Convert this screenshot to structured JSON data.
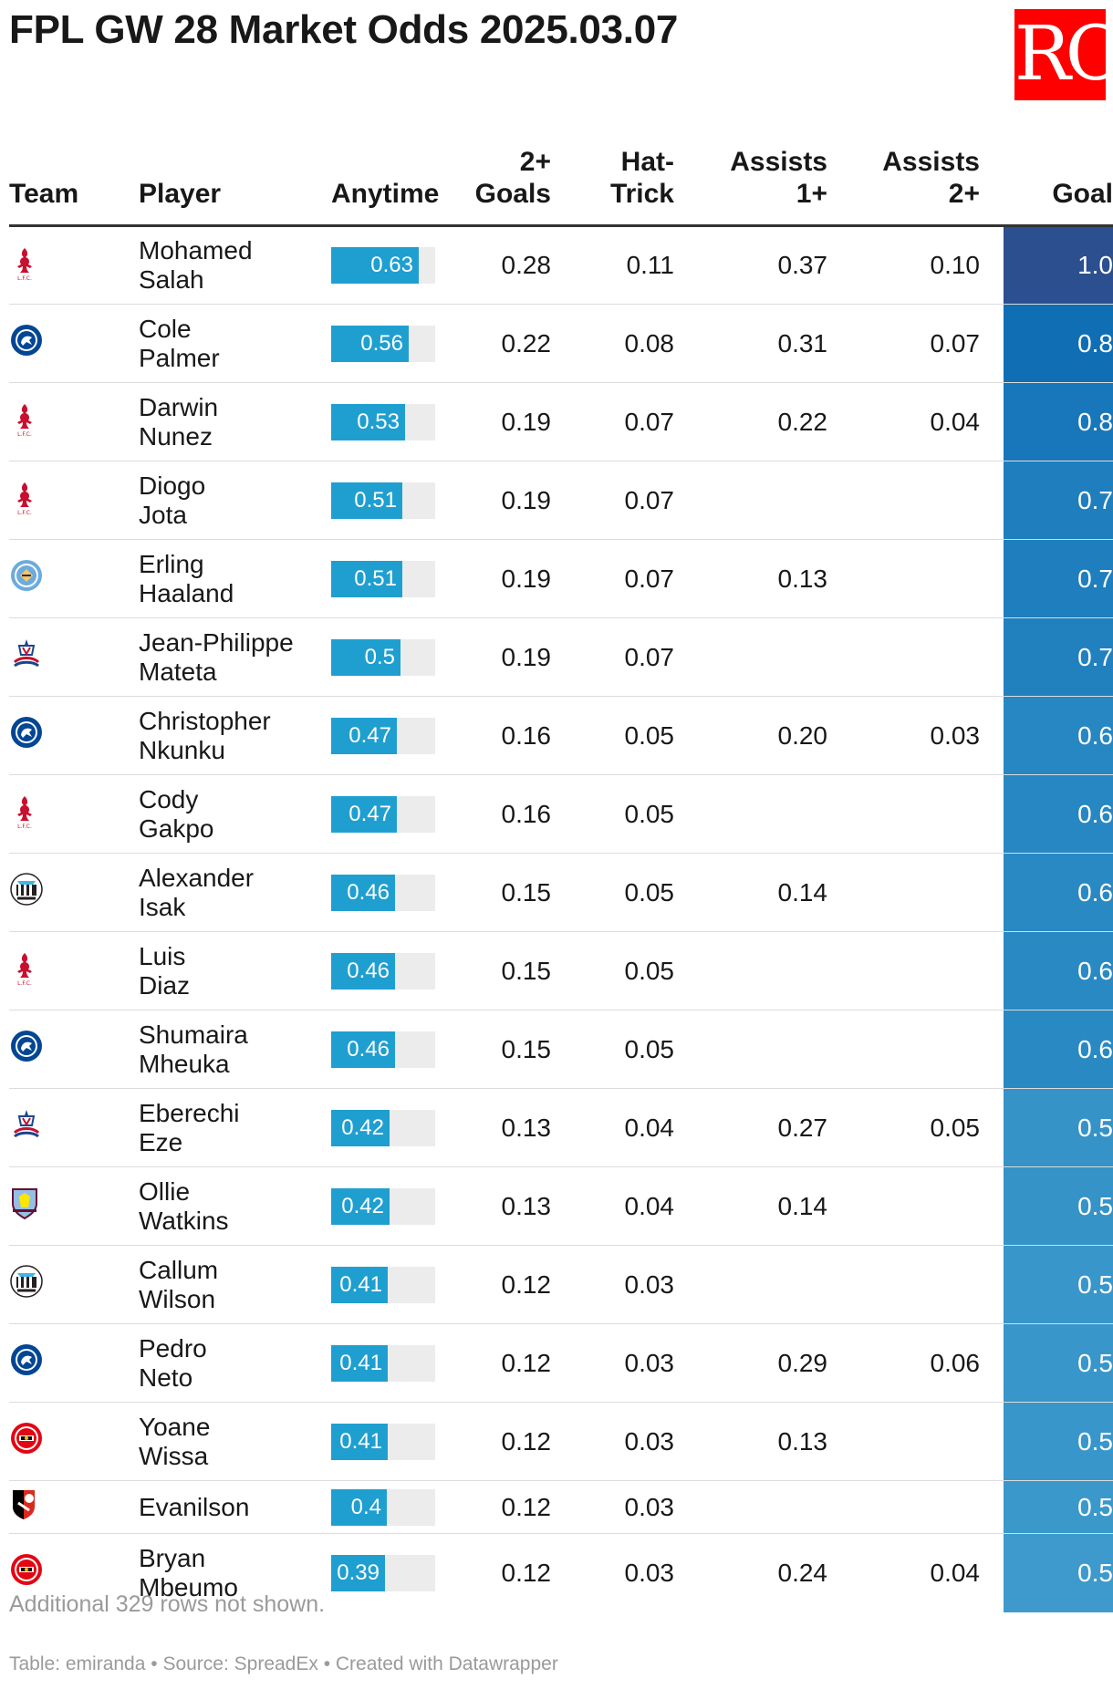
{
  "title": "FPL GW 28 Market Odds 2025.03.07",
  "logo_text": "RC",
  "columns": {
    "team": "Team",
    "player": "Player",
    "anytime": "Anytime",
    "goals2": "2+ Goals",
    "hattrick": "Hat-Trick",
    "assists1": "Assists 1+",
    "assists2": "Assists 2+",
    "goal": "Goal"
  },
  "rows": [
    {
      "team": "liverpool",
      "player": "Mohamed Salah",
      "anytime": "0.63",
      "anytime_value": 0.63,
      "goals2": "0.28",
      "hattrick": "0.11",
      "assists1": "0.37",
      "assists2": "0.10",
      "goal": "1.0",
      "goal_color": "#2b4f8f"
    },
    {
      "team": "chelsea",
      "player": "Cole Palmer",
      "anytime": "0.56",
      "anytime_value": 0.56,
      "goals2": "0.22",
      "hattrick": "0.08",
      "assists1": "0.31",
      "assists2": "0.07",
      "goal": "0.8",
      "goal_color": "#0f6eb4"
    },
    {
      "team": "liverpool",
      "player": "Darwin Nunez",
      "anytime": "0.53",
      "anytime_value": 0.53,
      "goals2": "0.19",
      "hattrick": "0.07",
      "assists1": "0.22",
      "assists2": "0.04",
      "goal": "0.8",
      "goal_color": "#1877ba"
    },
    {
      "team": "liverpool",
      "player": "Diogo Jota",
      "anytime": "0.51",
      "anytime_value": 0.51,
      "goals2": "0.19",
      "hattrick": "0.07",
      "assists1": "",
      "assists2": "",
      "goal": "0.7",
      "goal_color": "#1f7ebd"
    },
    {
      "team": "mancity",
      "player": "Erling Haaland",
      "anytime": "0.51",
      "anytime_value": 0.51,
      "goals2": "0.19",
      "hattrick": "0.07",
      "assists1": "0.13",
      "assists2": "",
      "goal": "0.7",
      "goal_color": "#1f7ebd"
    },
    {
      "team": "palace",
      "player": "Jean-Philippe Mateta",
      "anytime": "0.5",
      "anytime_value": 0.5,
      "goals2": "0.19",
      "hattrick": "0.07",
      "assists1": "",
      "assists2": "",
      "goal": "0.7",
      "goal_color": "#2180be"
    },
    {
      "team": "chelsea",
      "player": "Christopher Nkunku",
      "anytime": "0.47",
      "anytime_value": 0.47,
      "goals2": "0.16",
      "hattrick": "0.05",
      "assists1": "0.20",
      "assists2": "0.03",
      "goal": "0.6",
      "goal_color": "#2687c2"
    },
    {
      "team": "liverpool",
      "player": "Cody Gakpo",
      "anytime": "0.47",
      "anytime_value": 0.47,
      "goals2": "0.16",
      "hattrick": "0.05",
      "assists1": "",
      "assists2": "",
      "goal": "0.6",
      "goal_color": "#2687c2"
    },
    {
      "team": "newcastle",
      "player": "Alexander Isak",
      "anytime": "0.46",
      "anytime_value": 0.46,
      "goals2": "0.15",
      "hattrick": "0.05",
      "assists1": "0.14",
      "assists2": "",
      "goal": "0.6",
      "goal_color": "#2989c3"
    },
    {
      "team": "liverpool",
      "player": "Luis Diaz",
      "anytime": "0.46",
      "anytime_value": 0.46,
      "goals2": "0.15",
      "hattrick": "0.05",
      "assists1": "",
      "assists2": "",
      "goal": "0.6",
      "goal_color": "#2989c3"
    },
    {
      "team": "chelsea",
      "player": "Shumaira Mheuka",
      "anytime": "0.46",
      "anytime_value": 0.46,
      "goals2": "0.15",
      "hattrick": "0.05",
      "assists1": "",
      "assists2": "",
      "goal": "0.6",
      "goal_color": "#2989c3"
    },
    {
      "team": "palace",
      "player": "Eberechi Eze",
      "anytime": "0.42",
      "anytime_value": 0.42,
      "goals2": "0.13",
      "hattrick": "0.04",
      "assists1": "0.27",
      "assists2": "0.05",
      "goal": "0.5",
      "goal_color": "#3593c8"
    },
    {
      "team": "villa",
      "player": "Ollie Watkins",
      "anytime": "0.42",
      "anytime_value": 0.42,
      "goals2": "0.13",
      "hattrick": "0.04",
      "assists1": "0.14",
      "assists2": "",
      "goal": "0.5",
      "goal_color": "#3593c8"
    },
    {
      "team": "newcastle",
      "player": "Callum Wilson",
      "anytime": "0.41",
      "anytime_value": 0.41,
      "goals2": "0.12",
      "hattrick": "0.03",
      "assists1": "",
      "assists2": "",
      "goal": "0.5",
      "goal_color": "#3996ca"
    },
    {
      "team": "chelsea",
      "player": "Pedro Neto",
      "anytime": "0.41",
      "anytime_value": 0.41,
      "goals2": "0.12",
      "hattrick": "0.03",
      "assists1": "0.29",
      "assists2": "0.06",
      "goal": "0.5",
      "goal_color": "#3996ca"
    },
    {
      "team": "brentford",
      "player": "Yoane Wissa",
      "anytime": "0.41",
      "anytime_value": 0.41,
      "goals2": "0.12",
      "hattrick": "0.03",
      "assists1": "0.13",
      "assists2": "",
      "goal": "0.5",
      "goal_color": "#3996ca"
    },
    {
      "team": "bournemouth",
      "player": "Evanilson",
      "anytime": "0.4",
      "anytime_value": 0.4,
      "goals2": "0.12",
      "hattrick": "0.03",
      "assists1": "",
      "assists2": "",
      "goal": "0.5",
      "goal_color": "#3b98cb"
    },
    {
      "team": "brentford",
      "player": "Bryan Mbeumo",
      "anytime": "0.39",
      "anytime_value": 0.39,
      "goals2": "0.12",
      "hattrick": "0.03",
      "assists1": "0.24",
      "assists2": "0.04",
      "goal": "0.5",
      "goal_color": "#3e9acc"
    }
  ],
  "note": "Additional 329 rows not shown.",
  "source": "Table: emiranda • Source: SpreadEx • Created with Datawrapper"
}
